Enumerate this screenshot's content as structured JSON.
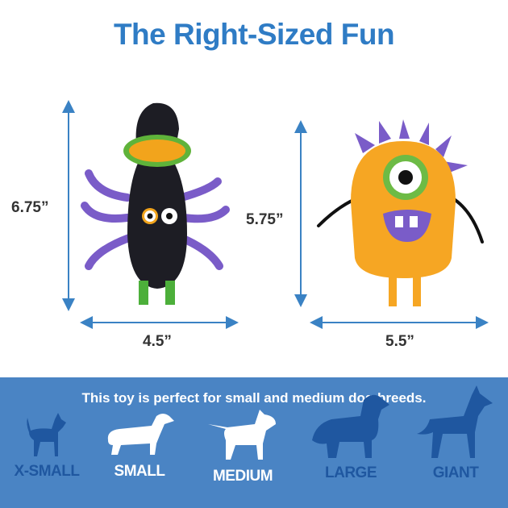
{
  "title": "The Right-Sized Fun",
  "toys": [
    {
      "name": "spider-toy",
      "height": "6.75”",
      "width": "4.5”"
    },
    {
      "name": "cyclops-toy",
      "height": "5.75”",
      "width": "5.5”"
    }
  ],
  "banner": {
    "text": "This toy is perfect for small and medium dog breeds.",
    "sizes": [
      {
        "label": "X-SMALL",
        "highlighted": false
      },
      {
        "label": "SMALL",
        "highlighted": true
      },
      {
        "label": "MEDIUM",
        "highlighted": true
      },
      {
        "label": "LARGE",
        "highlighted": false
      },
      {
        "label": "GIANT",
        "highlighted": false
      }
    ]
  },
  "colors": {
    "title": "#2f7cc5",
    "arrow": "#3a82c4",
    "panel": "#4a84c4",
    "inactive": "#1f57a0",
    "active": "#ffffff"
  }
}
